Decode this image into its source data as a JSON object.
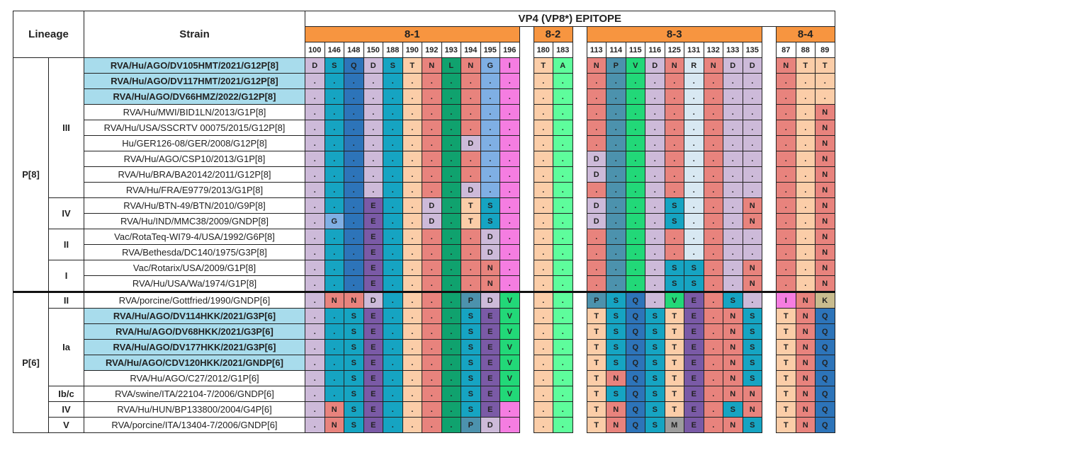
{
  "title": "VP4 (VP8*) EPITOPE",
  "headers": {
    "lineage": "Lineage",
    "strain": "Strain"
  },
  "sections": [
    {
      "name": "8-1",
      "positions": [
        "100",
        "146",
        "148",
        "150",
        "188",
        "190",
        "192",
        "193",
        "194",
        "195",
        "196"
      ]
    },
    {
      "name": "8-2",
      "positions": [
        "180",
        "183"
      ]
    },
    {
      "name": "8-3",
      "positions": [
        "113",
        "114",
        "115",
        "116",
        "125",
        "131",
        "132",
        "133",
        "135"
      ]
    },
    {
      "name": "8-4",
      "positions": [
        "87",
        "88",
        "89"
      ]
    }
  ],
  "colors": {
    "D": "#cdbad9",
    "S": "#16a4c2",
    "Q": "#2d74b9",
    "T": "#fbcda8",
    "N": "#e8837d",
    "L": "#10a26e",
    "G": "#7fafe4",
    "I": "#f57de1",
    "A": "#5efd9c",
    "P": "#4c92ad",
    "V": "#22d878",
    "R": "#d8e8f2",
    "E": "#7a5aa6",
    "K": "#c9bc8e",
    "M": "#9d9d9d"
  },
  "genotypes": [
    {
      "name": "P[8]",
      "lineages": [
        {
          "name": "III",
          "rows": [
            {
              "strain": "RVA/Hu/AGO/DV105HMT/2021/G12P[8]",
              "hl": true,
              "v": [
                "D",
                "S",
                "Q",
                "D",
                "S",
                "T",
                "N",
                "L",
                "N",
                "G",
                "I",
                "T",
                "A",
                "N",
                "P",
                "V",
                "D",
                "N",
                "R",
                "N",
                "D",
                "D",
                "N",
                "T",
                "T"
              ]
            },
            {
              "strain": "RVA/Hu/AGO/DV117HMT/2021/G12P[8]",
              "hl": true,
              "v": [
                ".",
                ".",
                ".",
                ".",
                ".",
                ".",
                ".",
                ".",
                ".",
                ".",
                ".",
                ".",
                ".",
                ".",
                ".",
                ".",
                ".",
                ".",
                ".",
                ".",
                ".",
                ".",
                ".",
                ".",
                "."
              ]
            },
            {
              "strain": "RVA/Hu/AGO/DV66HMZ/2022/G12P[8]",
              "hl": true,
              "v": [
                ".",
                ".",
                ".",
                ".",
                ".",
                ".",
                ".",
                ".",
                ".",
                ".",
                ".",
                ".",
                ".",
                ".",
                ".",
                ".",
                ".",
                ".",
                ".",
                ".",
                ".",
                ".",
                ".",
                ".",
                "."
              ]
            },
            {
              "strain": "RVA/Hu/MWI/BID1LN/2013/G1P[8]",
              "v": [
                ".",
                ".",
                ".",
                ".",
                ".",
                ".",
                ".",
                ".",
                ".",
                ".",
                ".",
                ".",
                ".",
                ".",
                ".",
                ".",
                ".",
                ".",
                ".",
                ".",
                ".",
                ".",
                ".",
                ".",
                "N"
              ]
            },
            {
              "strain": "RVA/Hu/USA/SSCRTV 00075/2015/G12P[8]",
              "v": [
                ".",
                ".",
                ".",
                ".",
                ".",
                ".",
                ".",
                ".",
                ".",
                ".",
                ".",
                ".",
                ".",
                ".",
                ".",
                ".",
                ".",
                ".",
                ".",
                ".",
                ".",
                ".",
                ".",
                ".",
                "N"
              ]
            },
            {
              "strain": "Hu/GER126-08/GER/2008/G12P[8]",
              "v": [
                ".",
                ".",
                ".",
                ".",
                ".",
                ".",
                ".",
                ".",
                "D",
                ".",
                ".",
                ".",
                ".",
                ".",
                ".",
                ".",
                ".",
                ".",
                ".",
                ".",
                ".",
                ".",
                ".",
                ".",
                "N"
              ]
            },
            {
              "strain": "RVA/Hu/AGO/CSP10/2013/G1P[8]",
              "v": [
                ".",
                ".",
                ".",
                ".",
                ".",
                ".",
                ".",
                ".",
                ".",
                ".",
                ".",
                ".",
                ".",
                "D",
                ".",
                ".",
                ".",
                ".",
                ".",
                ".",
                ".",
                ".",
                ".",
                ".",
                "N"
              ]
            },
            {
              "strain": "RVA/Hu/BRA/BA20142/2011/G12P[8]",
              "v": [
                ".",
                ".",
                ".",
                ".",
                ".",
                ".",
                ".",
                ".",
                ".",
                ".",
                ".",
                ".",
                ".",
                "D",
                ".",
                ".",
                ".",
                ".",
                ".",
                ".",
                ".",
                ".",
                ".",
                ".",
                "N"
              ]
            },
            {
              "strain": "RVA/Hu/FRA/E9779/2013/G1P[8]",
              "v": [
                ".",
                ".",
                ".",
                ".",
                ".",
                ".",
                ".",
                ".",
                "D",
                ".",
                ".",
                ".",
                ".",
                ".",
                ".",
                ".",
                ".",
                ".",
                ".",
                ".",
                ".",
                ".",
                ".",
                ".",
                "N"
              ]
            }
          ]
        },
        {
          "name": "IV",
          "rows": [
            {
              "strain": "RVA/Hu/BTN-49/BTN/2010/G9P[8]",
              "v": [
                ".",
                ".",
                ".",
                "E",
                ".",
                ".",
                "D",
                ".",
                "T",
                "S",
                ".",
                ".",
                ".",
                "D",
                ".",
                ".",
                ".",
                "S",
                ".",
                ".",
                ".",
                "N",
                ".",
                ".",
                "N"
              ]
            },
            {
              "strain": "RVA/Hu/IND/MMC38/2009/GNDP[8]",
              "v": [
                ".",
                "G",
                ".",
                "E",
                ".",
                ".",
                "D",
                ".",
                "T",
                "S",
                ".",
                ".",
                ".",
                "D",
                ".",
                ".",
                ".",
                "S",
                ".",
                ".",
                ".",
                "N",
                ".",
                ".",
                "N"
              ]
            }
          ]
        },
        {
          "name": "II",
          "rows": [
            {
              "strain": "Vac/RotaTeq-WI79-4/USA/1992/G6P[8]",
              "v": [
                ".",
                ".",
                ".",
                "E",
                ".",
                ".",
                ".",
                ".",
                ".",
                "D",
                ".",
                ".",
                ".",
                ".",
                ".",
                ".",
                ".",
                ".",
                ".",
                ".",
                ".",
                ".",
                ".",
                ".",
                "N"
              ]
            },
            {
              "strain": "RVA/Bethesda/DC140/1975/G3P[8]",
              "v": [
                ".",
                ".",
                ".",
                "E",
                ".",
                ".",
                ".",
                ".",
                ".",
                "D",
                ".",
                ".",
                ".",
                ".",
                ".",
                ".",
                ".",
                ".",
                ".",
                ".",
                ".",
                ".",
                ".",
                ".",
                "N"
              ]
            }
          ]
        },
        {
          "name": "I",
          "rows": [
            {
              "strain": "Vac/Rotarix/USA/2009/G1P[8]",
              "v": [
                ".",
                ".",
                ".",
                "E",
                ".",
                ".",
                ".",
                ".",
                ".",
                "N",
                ".",
                ".",
                ".",
                ".",
                ".",
                ".",
                ".",
                "S",
                "S",
                ".",
                ".",
                "N",
                ".",
                ".",
                "N"
              ]
            },
            {
              "strain": "RVA/Hu/USA/Wa/1974/G1P[8]",
              "v": [
                ".",
                ".",
                ".",
                "E",
                ".",
                ".",
                ".",
                ".",
                ".",
                "N",
                ".",
                ".",
                ".",
                ".",
                ".",
                ".",
                ".",
                "S",
                "S",
                ".",
                ".",
                "N",
                ".",
                ".",
                "N"
              ]
            }
          ]
        }
      ]
    },
    {
      "name": "P[6]",
      "lineages": [
        {
          "name": "II",
          "rows": [
            {
              "strain": "RVA/porcine/Gottfried/1990/GNDP[6]",
              "v": [
                ".",
                "N",
                "N",
                "D",
                ".",
                ".",
                ".",
                ".",
                "P",
                "D",
                "V",
                ".",
                ".",
                "P",
                "S",
                "Q",
                ".",
                "V",
                "E",
                ".",
                "S",
                ".",
                "I",
                "N",
                "K"
              ]
            }
          ]
        },
        {
          "name": "Ia",
          "rows": [
            {
              "strain": "RVA/Hu/AGO/DV114HKK/2021/G3P[6]",
              "hl": true,
              "v": [
                ".",
                ".",
                "S",
                "E",
                ".",
                ".",
                ".",
                ".",
                "S",
                "E",
                "V",
                ".",
                ".",
                "T",
                "S",
                "Q",
                "S",
                "T",
                "E",
                ".",
                "N",
                "S",
                "T",
                "N",
                "Q"
              ]
            },
            {
              "strain": "RVA/Hu/AGO/DV68HKK/2021/G3P[6]",
              "hl": true,
              "v": [
                ".",
                ".",
                "S",
                "E",
                ".",
                ".",
                ".",
                ".",
                "S",
                "E",
                "V",
                ".",
                ".",
                "T",
                "S",
                "Q",
                "S",
                "T",
                "E",
                ".",
                "N",
                "S",
                "T",
                "N",
                "Q"
              ]
            },
            {
              "strain": "RVA/Hu/AGO/DV177HKK/2021/G3P[6]",
              "hl": true,
              "v": [
                ".",
                ".",
                "S",
                "E",
                ".",
                ".",
                ".",
                ".",
                "S",
                "E",
                "V",
                ".",
                ".",
                "T",
                "S",
                "Q",
                "S",
                "T",
                "E",
                ".",
                "N",
                "S",
                "T",
                "N",
                "Q"
              ]
            },
            {
              "strain": "RVA/Hu/AGO/CDV120HKK/2021/GNDP[6]",
              "hl": true,
              "v": [
                ".",
                ".",
                "S",
                "E",
                ".",
                ".",
                ".",
                ".",
                "S",
                "E",
                "V",
                ".",
                ".",
                "T",
                "S",
                "Q",
                "S",
                "T",
                "E",
                ".",
                "N",
                "S",
                "T",
                "N",
                "Q"
              ]
            },
            {
              "strain": "RVA/Hu/AGO/C27/2012/G1P[6]",
              "v": [
                ".",
                ".",
                "S",
                "E",
                ".",
                ".",
                ".",
                ".",
                "S",
                "E",
                "V",
                ".",
                ".",
                "T",
                "N",
                "Q",
                "S",
                "T",
                "E",
                ".",
                "N",
                "S",
                "T",
                "N",
                "Q"
              ]
            }
          ]
        },
        {
          "name": "Ib/c",
          "rows": [
            {
              "strain": "RVA/swine/ITA/22104-7/2006/GNDP[6]",
              "v": [
                ".",
                ".",
                "S",
                "E",
                ".",
                ".",
                ".",
                ".",
                "S",
                "E",
                "V",
                ".",
                ".",
                "T",
                "S",
                "Q",
                "S",
                "T",
                "E",
                ".",
                "N",
                "N",
                "T",
                "N",
                "Q"
              ]
            }
          ]
        },
        {
          "name": "IV",
          "rows": [
            {
              "strain": "RVA/Hu/HUN/BP133800/2004/G4P[6]",
              "v": [
                ".",
                "N",
                "S",
                "E",
                ".",
                ".",
                ".",
                ".",
                "S",
                "E",
                ".",
                ".",
                ".",
                "T",
                "N",
                "Q",
                "S",
                "T",
                "E",
                ".",
                "S",
                "N",
                "T",
                "N",
                "Q"
              ]
            }
          ]
        },
        {
          "name": "V",
          "rows": [
            {
              "strain": "RVA/porcine/ITA/13404-7/2006/GNDP[6]",
              "v": [
                ".",
                "N",
                "S",
                "E",
                ".",
                ".",
                ".",
                ".",
                "P",
                "D",
                ".",
                ".",
                ".",
                "T",
                "N",
                "Q",
                "S",
                "M",
                "E",
                ".",
                "N",
                "S",
                "T",
                "N",
                "Q"
              ]
            }
          ]
        }
      ]
    }
  ]
}
